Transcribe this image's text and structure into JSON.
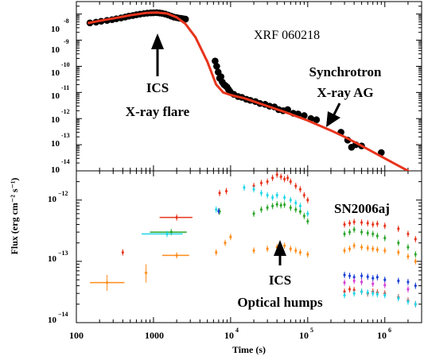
{
  "chart_data": [
    {
      "panel": "top",
      "type": "scatter",
      "title": "",
      "xlabel": "Time (s)",
      "ylabel": "Flux (erg cm⁻² s⁻¹)",
      "xscale": "log",
      "yscale": "log",
      "xlim": [
        100,
        3000000
      ],
      "ylim": [
        1e-14,
        3e-08
      ],
      "y_tick_mantissa": "10",
      "y_tick_exponents": [
        "-8",
        "-9",
        "-10",
        "-11",
        "-12",
        "-13",
        "-14"
      ],
      "y_tick_values": [
        1e-08,
        1e-09,
        1e-10,
        1e-11,
        1e-12,
        1e-13,
        1e-14
      ],
      "annotations": [
        "XRF 060218",
        "ICS",
        "X-ray flare",
        "Synchrotron",
        "X-ray AG"
      ],
      "model_curve": {
        "color": "#e8341c",
        "x": [
          140,
          200,
          300,
          500,
          800,
          1100,
          1500,
          2000,
          2600,
          3500,
          5000,
          6500,
          8000,
          10000,
          12000,
          15000,
          20000,
          30000,
          50000,
          100000,
          200000,
          300000,
          500000,
          1000000,
          2000000,
          3000000
        ],
        "y": [
          4.5e-09,
          5.5e-09,
          6.8e-09,
          9e-09,
          1.1e-08,
          1.15e-08,
          1.05e-08,
          7.5e-09,
          4.2e-09,
          1.3e-09,
          1.5e-10,
          2e-11,
          1e-11,
          8e-12,
          7e-12,
          6e-12,
          4.5e-12,
          3e-12,
          1.8e-12,
          8.5e-13,
          3.5e-13,
          2e-13,
          9e-14,
          3e-14,
          1e-14,
          5e-15
        ]
      },
      "series": [
        {
          "kind": "points",
          "color": "#000000",
          "x": [
            150,
            180,
            210,
            250,
            290,
            330,
            380,
            430,
            480,
            540,
            600,
            670,
            750,
            830,
            920,
            1000,
            1100,
            1200,
            1300,
            1420,
            1550,
            1700,
            1850,
            2000,
            2150,
            2300,
            2450,
            2600,
            6300,
            6600,
            6900,
            7200,
            7500,
            7800,
            8200,
            8600,
            9000,
            9400,
            9800,
            11000,
            12500,
            14000,
            16000,
            18000,
            21000,
            24000,
            28000,
            32000,
            37000,
            42000,
            48000,
            55000,
            65000,
            75000,
            90000,
            110000,
            130000,
            270000,
            330000,
            370000,
            420000,
            500000,
            900000
          ],
          "y": [
            4.6e-09,
            4.9e-09,
            5.3e-09,
            5.7e-09,
            6.1e-09,
            6.6e-09,
            7.1e-09,
            7.7e-09,
            8.3e-09,
            8.8e-09,
            9.4e-09,
            9.9e-09,
            1.04e-08,
            1.08e-08,
            1.11e-08,
            1.12e-08,
            1.13e-08,
            1.1e-08,
            1.06e-08,
            1e-08,
            9.2e-09,
            8.3e-09,
            7.6e-09,
            7.3e-09,
            7e-09,
            6.8e-09,
            6.6e-09,
            6.4e-09,
            1.6e-10,
            1e-10,
            6e-11,
            3.5e-11,
            4e-11,
            2.5e-11,
            2e-11,
            1.8e-11,
            1.6e-11,
            1.3e-11,
            1.1e-11,
            8.5e-12,
            7e-12,
            6.5e-12,
            5.5e-12,
            5e-12,
            4.5e-12,
            3.8e-12,
            3.5e-12,
            3e-12,
            2.8e-12,
            2.2e-12,
            2e-12,
            2.2e-12,
            1.6e-12,
            1.5e-12,
            1.3e-12,
            1e-12,
            9e-13,
            3e-13,
            1.5e-13,
            8e-14,
            1e-13,
            9e-14,
            5e-14
          ],
          "err_low": [
            null,
            null,
            null,
            null,
            null,
            null,
            null,
            null,
            null,
            null,
            null,
            null,
            null,
            null,
            null,
            null,
            null,
            null,
            null,
            null,
            null,
            null,
            null,
            null,
            null,
            null,
            null,
            null,
            null,
            null,
            null,
            null,
            null,
            null,
            null,
            null,
            null,
            null,
            null,
            null,
            null,
            null,
            null,
            null,
            null,
            null,
            null,
            null,
            null,
            null,
            null,
            null,
            null,
            null,
            null,
            null,
            null,
            2.5e-13,
            1.2e-13,
            6e-14,
            8e-14,
            7e-14,
            4e-14
          ],
          "err_high": [
            null,
            null,
            null,
            null,
            null,
            null,
            null,
            null,
            null,
            null,
            null,
            null,
            null,
            null,
            null,
            null,
            null,
            null,
            null,
            null,
            null,
            null,
            null,
            null,
            null,
            null,
            null,
            null,
            null,
            null,
            null,
            null,
            null,
            null,
            null,
            null,
            null,
            null,
            null,
            null,
            null,
            null,
            null,
            null,
            null,
            null,
            null,
            null,
            null,
            null,
            null,
            null,
            null,
            null,
            null,
            null,
            null,
            3.6e-13,
            1.9e-13,
            1e-13,
            1.3e-13,
            1.1e-13,
            6e-14
          ]
        }
      ]
    },
    {
      "panel": "bottom",
      "type": "scatter",
      "title": "",
      "xlabel": "Time (s)",
      "ylabel": "Flux (erg cm⁻² s⁻¹)",
      "xscale": "log",
      "yscale": "log",
      "xlim": [
        100,
        3000000
      ],
      "ylim": [
        1e-14,
        3e-12
      ],
      "x_tick_values": [
        100,
        1000,
        10000,
        100000,
        1000000
      ],
      "x_tick_labels": [
        {
          "mantissa": "100",
          "exponent": ""
        },
        {
          "mantissa": "1000",
          "exponent": ""
        },
        {
          "mantissa": "10",
          "exponent": "4"
        },
        {
          "mantissa": "10",
          "exponent": "5"
        },
        {
          "mantissa": "10",
          "exponent": "6"
        }
      ],
      "y_tick_values": [
        1e-12,
        1e-13,
        1e-14
      ],
      "y_tick_labels": [
        {
          "mantissa": "10",
          "exponent": "−12"
        },
        {
          "mantissa": "10",
          "exponent": "−13"
        },
        {
          "mantissa": "10",
          "exponent": "−14"
        }
      ],
      "annotations": [
        "SN2006aj",
        "ICS",
        "Optical humps"
      ],
      "series": [
        {
          "color": "#e8341c",
          "x": [
            2000,
            7200,
            8800,
            20000,
            25000,
            30000,
            35000,
            40000,
            45000,
            50000,
            55000,
            60000,
            70000,
            80000,
            90000,
            100000,
            300000,
            350000,
            400000,
            500000,
            600000,
            700000,
            800000,
            1000000,
            1500000,
            2000000,
            2500000
          ],
          "y": [
            5.2e-13,
            1.3e-12,
            1.4e-12,
            1.7e-12,
            1.9e-12,
            2e-12,
            2.3e-12,
            2.6e-12,
            2.4e-12,
            2.2e-12,
            2.3e-12,
            2e-12,
            1.7e-12,
            1.5e-12,
            1.2e-12,
            1e-12,
            4e-13,
            4.2e-13,
            4.4e-13,
            4.3e-13,
            4.2e-13,
            4e-13,
            4.1e-13,
            3.8e-13,
            3.4e-13,
            2.8e-13,
            2.3e-13
          ],
          "xerr": [
            [
              1200,
              3200
            ],
            null,
            null,
            null,
            null,
            null,
            null,
            null,
            null,
            null,
            null,
            null,
            null,
            null,
            null,
            null,
            null,
            null,
            null,
            null,
            null,
            null,
            null,
            null,
            null,
            null,
            null
          ]
        },
        {
          "color": "#e8341c",
          "x": [
            400,
            300000,
            350000,
            400000,
            500000,
            600000,
            700000,
            800000,
            1000000,
            1500000,
            2000000,
            2500000
          ],
          "y": [
            1.4e-13,
            3.2e-14,
            3.5e-14,
            3.4e-14,
            3.2e-14,
            3e-14,
            3.2e-14,
            3.1e-14,
            3e-14,
            2.6e-14,
            2.3e-14,
            2e-14
          ]
        },
        {
          "color": "#2aa62a",
          "x": [
            1700,
            7200,
            20000,
            25000,
            30000,
            35000,
            40000,
            45000,
            50000,
            60000,
            70000,
            80000,
            90000,
            100000,
            300000,
            350000,
            400000,
            500000,
            600000,
            700000,
            800000,
            1000000,
            1500000,
            2000000,
            2500000
          ],
          "y": [
            3e-13,
            6.5e-13,
            6e-13,
            7e-13,
            7.5e-13,
            8e-13,
            8.5e-13,
            8.2e-13,
            8.4e-13,
            7.5e-13,
            7e-13,
            6.5e-13,
            5.5e-13,
            4.5e-13,
            2.8e-13,
            3e-13,
            3.3e-13,
            3e-13,
            2.9e-13,
            2.8e-13,
            2.6e-13,
            2.4e-13,
            2e-13,
            1.7e-13,
            1.3e-13
          ],
          "xerr": [
            [
              900,
              2700
            ],
            null,
            null,
            null,
            null,
            null,
            null,
            null,
            null,
            null,
            null,
            null,
            null,
            null,
            null,
            null,
            null,
            null,
            null,
            null,
            null,
            null,
            null,
            null,
            null
          ]
        },
        {
          "color": "#1fd6e8",
          "x": [
            1500,
            6500,
            15000,
            20000,
            25000,
            30000,
            35000,
            40000,
            50000,
            60000,
            70000,
            80000,
            100000,
            300000,
            400000,
            500000,
            600000,
            700000,
            800000,
            1000000,
            1500000,
            2000000,
            2500000
          ],
          "y": [
            2.8e-13,
            7e-13,
            1.6e-12,
            1.5e-12,
            1.3e-12,
            1.2e-12,
            1.1e-12,
            1.2e-12,
            1.1e-12,
            1e-12,
            9e-13,
            8e-13,
            6e-13,
            2.8e-14,
            3e-14,
            3.2e-14,
            3.1e-14,
            3e-14,
            2.9e-14,
            2.8e-14,
            2.5e-14,
            2.2e-14,
            2e-14
          ],
          "xerr": [
            [
              700,
              2400
            ],
            null,
            null,
            null,
            null,
            null,
            null,
            null,
            null,
            null,
            null,
            null,
            null,
            null,
            null,
            null,
            null,
            null,
            null,
            null,
            null,
            null,
            null
          ]
        },
        {
          "color": "#1a3fd6",
          "x": [
            7000,
            300000,
            350000,
            400000,
            500000,
            600000,
            700000,
            800000,
            1000000,
            1500000,
            2000000,
            2500000
          ],
          "y": [
            6.6e-13,
            6e-14,
            5.8e-14,
            5.5e-14,
            5.8e-14,
            5.6e-14,
            5.3e-14,
            5.5e-14,
            5e-14,
            4.8e-14,
            4.6e-14,
            4e-14
          ]
        },
        {
          "color": "#d63fd6",
          "x": [
            300000,
            400000,
            500000,
            700000,
            1000000,
            2000000
          ],
          "y": [
            4.5e-14,
            4.8e-14,
            4.6e-14,
            4.3e-14,
            4.1e-14,
            3.5e-14
          ]
        },
        {
          "color": "#ff8c1a",
          "x": [
            250,
            800,
            2000,
            6500,
            8500,
            10000,
            20000,
            30000,
            40000,
            50000,
            60000,
            70000,
            80000,
            100000,
            300000,
            350000,
            400000,
            500000,
            600000,
            700000,
            800000,
            1000000,
            1500000,
            2000000,
            2500000
          ],
          "y": [
            4.5e-14,
            6.5e-14,
            1.25e-13,
            1.4e-13,
            2e-13,
            2.5e-13,
            1.5e-13,
            1.6e-13,
            1.7e-13,
            1.8e-13,
            1.6e-13,
            1.5e-13,
            1.4e-13,
            1.3e-13,
            1.5e-13,
            1.6e-13,
            1.8e-13,
            1.7e-13,
            1.65e-13,
            1.6e-13,
            1.55e-13,
            1.5e-13,
            1.4e-13,
            1.2e-13,
            1e-13
          ],
          "xerr": [
            [
              150,
              420
            ],
            null,
            [
              1300,
              2900
            ],
            null,
            null,
            null,
            null,
            null,
            null,
            null,
            null,
            null,
            null,
            null,
            null,
            null,
            null,
            null,
            null,
            null,
            null,
            null,
            null,
            null,
            null
          ],
          "yerr": [
            [
              3.3e-14,
              6e-14
            ],
            [
              4.5e-14,
              9e-14
            ],
            null,
            null,
            null,
            null,
            null,
            null,
            null,
            null,
            null,
            null,
            null,
            null,
            null,
            null,
            null,
            null,
            null,
            null,
            null,
            null,
            null,
            null,
            null
          ]
        }
      ]
    }
  ]
}
